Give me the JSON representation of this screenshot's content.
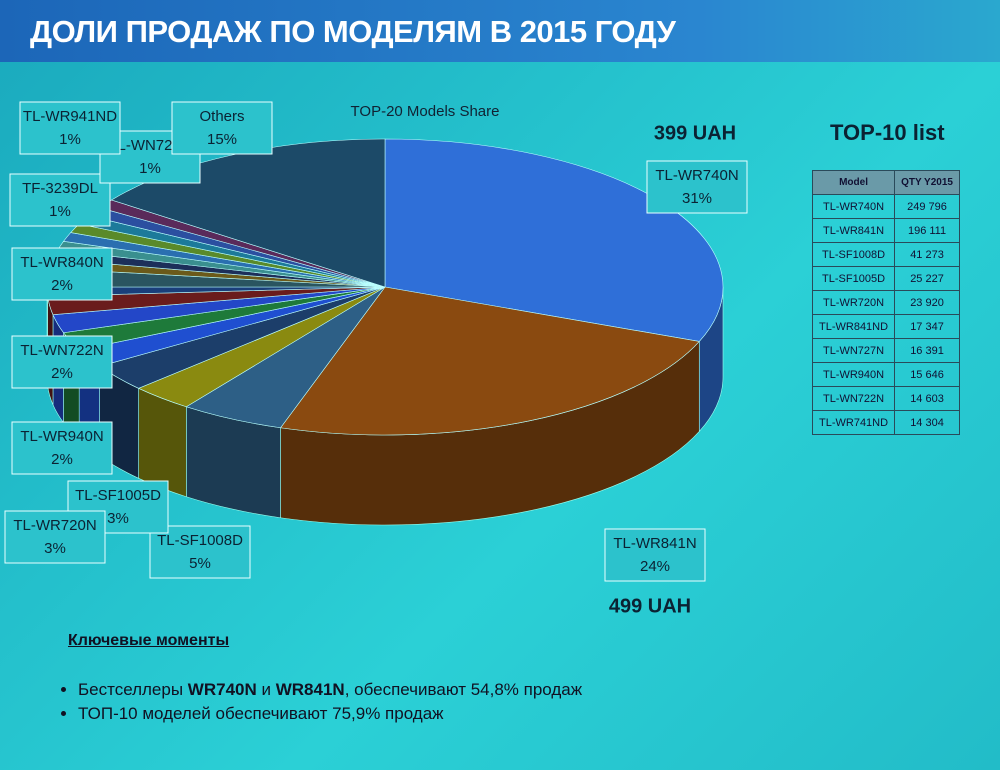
{
  "header": {
    "title": "ДОЛИ ПРОДАЖ ПО МОДЕЛЯМ В 2015 ГОДУ"
  },
  "chart_data": {
    "type": "pie",
    "title": "TOP-20 Models Share",
    "categories": [
      "TL-WR740N",
      "TL-WR841N",
      "TL-SF1008D",
      "TL-SF1005D",
      "TL-WR720N",
      "TL-WR940N",
      null,
      "TL-WN722N",
      null,
      null,
      "TL-WR840N",
      null,
      null,
      null,
      "TF-3239DL",
      null,
      null,
      "TL-WN725N",
      "TL-WR941ND",
      "Others"
    ],
    "values": [
      31,
      24,
      5,
      3,
      3,
      2,
      2,
      2,
      2,
      1,
      2,
      1,
      1,
      1,
      1,
      1,
      1,
      1,
      1,
      15
    ],
    "value_labels": [
      "31%",
      "24%",
      "5%",
      "3%",
      "3%",
      "2%",
      null,
      "2%",
      null,
      null,
      "2%",
      null,
      null,
      null,
      "1%",
      null,
      null,
      "1%",
      "1%",
      "15%"
    ],
    "colors": [
      "#2f6fd8",
      "#8a4a10",
      "#2d5f86",
      "#8a8a10",
      "#1c3e6a",
      "#1f4fd0",
      "#1e7a3a",
      "#2347c8",
      "#6a1c1c",
      "#1a3f7a",
      "#2a5560",
      "#6b5a1a",
      "#1c2f5a",
      "#3a8f8f",
      "#2a6fb0",
      "#5a8a2a",
      "#1c7a9a",
      "#2b4fa0",
      "#5a2a5a",
      "#1c4a68"
    ],
    "annotations": [
      "399 UAH",
      "499 UAH"
    ]
  },
  "table": {
    "title": "TOP-10 list",
    "header": [
      "Model",
      "QTY Y2015"
    ],
    "rows": [
      [
        "TL-WR740N",
        "249 796"
      ],
      [
        "TL-WR841N",
        "196 111"
      ],
      [
        "TL-SF1008D",
        "41 273"
      ],
      [
        "TL-SF1005D",
        "25 227"
      ],
      [
        "TL-WR720N",
        "23 920"
      ],
      [
        "TL-WR841ND",
        "17 347"
      ],
      [
        "TL-WN727N",
        "16 391"
      ],
      [
        "TL-WR940N",
        "15 646"
      ],
      [
        "TL-WN722N",
        "14 603"
      ],
      [
        "TL-WR741ND",
        "14 304"
      ]
    ]
  },
  "notes": {
    "heading": "Ключевые моменты",
    "bullets": [
      [
        "Бестселлеры ",
        "WR740N",
        " и ",
        "WR841N",
        ", обеспечивают 54,8% продаж"
      ],
      [
        "ТОП-10 моделей обеспечивают 75,9%  продаж"
      ]
    ]
  }
}
